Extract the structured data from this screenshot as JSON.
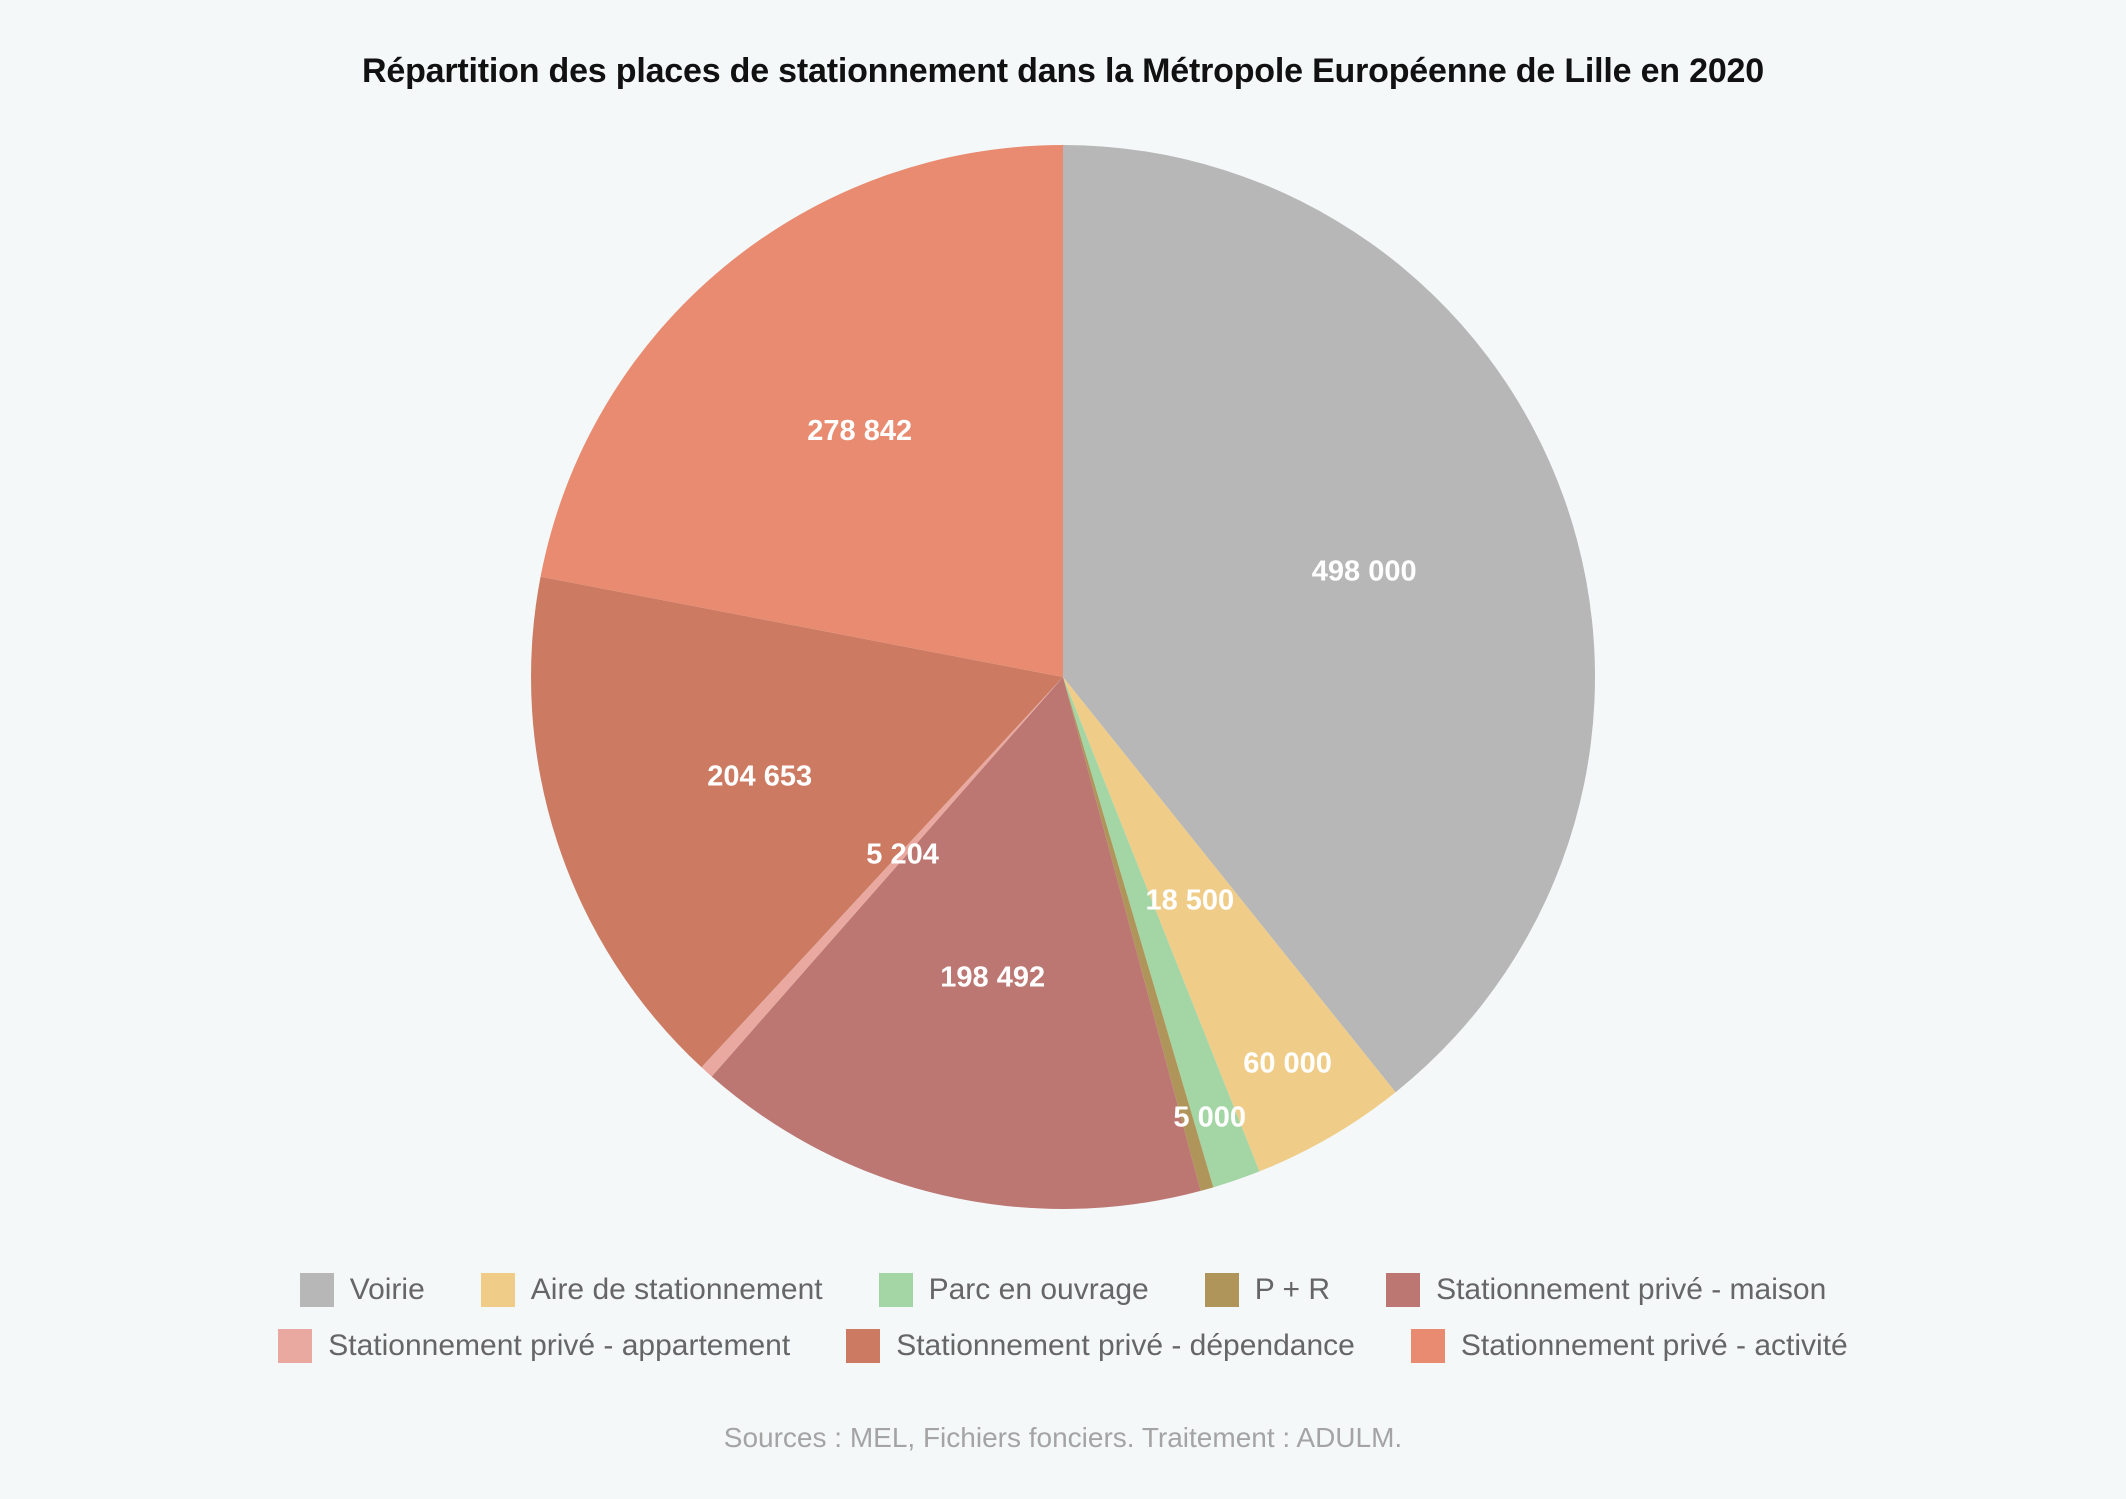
{
  "chart_data": {
    "type": "pie",
    "title": "Répartition des places de stationnement dans la Métropole Européenne de Lille en 2020",
    "categories": [
      "Voirie",
      "Aire de stationnement",
      "Parc en ouvrage",
      "P + R",
      "Stationnement privé - maison",
      "Stationnement privé - appartement",
      "Stationnement privé - dépendance",
      "Stationnement privé - activité"
    ],
    "values": [
      498000,
      60000,
      18500,
      5000,
      198492,
      5204,
      204653,
      278842
    ],
    "value_labels": [
      "498 000",
      "60 000",
      "18 500",
      "5 000",
      "198 492",
      "5 204",
      "204 653",
      "278 842"
    ],
    "colors": [
      "#b7b7b7",
      "#efcd89",
      "#a3d5a5",
      "#b0955a",
      "#bc7773",
      "#e9a9a1",
      "#cc7b62",
      "#e98b70"
    ],
    "start_angle": "top (12 o'clock)",
    "direction": "clockwise",
    "legend_position": "bottom",
    "source": "Sources : MEL, Fichiers fonciers. Traitement : ADULM."
  }
}
